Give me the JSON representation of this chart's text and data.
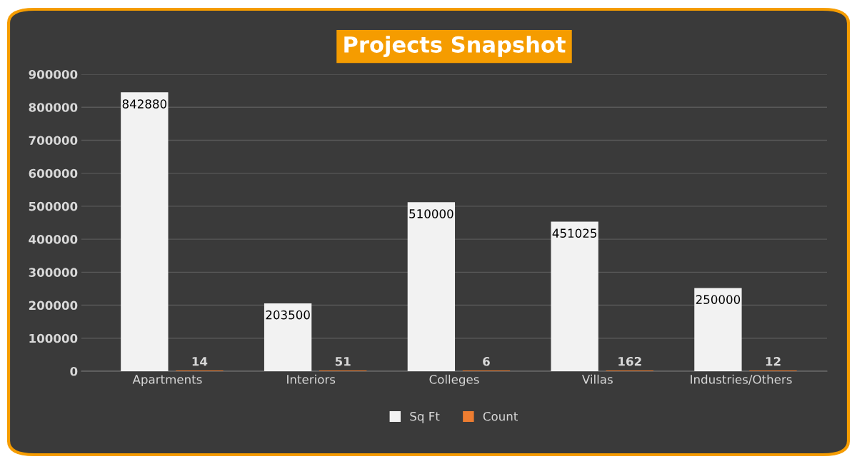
{
  "chart_data": {
    "type": "bar",
    "title": "Projects Snapshot",
    "categories": [
      "Apartments",
      "Interiors",
      "Colleges",
      "Villas",
      "Industries/Others"
    ],
    "series": [
      {
        "name": "Sq Ft",
        "color": "#f2f2f2",
        "values": [
          842880,
          203500,
          510000,
          451025,
          250000
        ]
      },
      {
        "name": "Count",
        "color": "#ed7d31",
        "values": [
          14,
          51,
          6,
          162,
          12
        ]
      }
    ],
    "ylim": [
      0,
      900000
    ],
    "yticks": [
      0,
      100000,
      200000,
      300000,
      400000,
      500000,
      600000,
      700000,
      800000,
      900000
    ],
    "grid": "y",
    "legend": "bottom",
    "data_labels": true
  }
}
